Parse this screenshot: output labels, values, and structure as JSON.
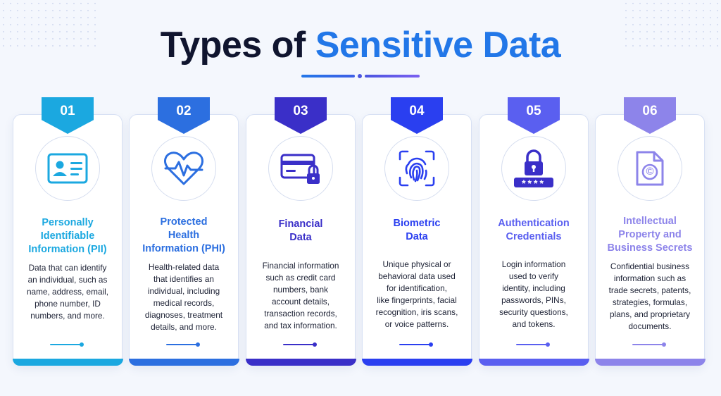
{
  "title": {
    "part1": "Types of ",
    "part2": "Sensitive Data"
  },
  "colors": {
    "title_dark": "#10152f",
    "title_accent": "#2277e8",
    "card_accents": [
      "#1ba8e0",
      "#2c6fe0",
      "#3a2fc8",
      "#2a3ff0",
      "#5a5ff0",
      "#8d84ea"
    ]
  },
  "cards": [
    {
      "number": "01",
      "icon": "id-card-icon",
      "title": [
        "Personally",
        "Identifiable",
        "Information (PII)"
      ],
      "description": [
        "Data that can identify",
        "an individual, such as",
        "name, address, email,",
        "phone number, ID",
        "numbers, and more."
      ]
    },
    {
      "number": "02",
      "icon": "heart-pulse-icon",
      "title": [
        "Protected",
        "Health",
        "Information (PHI)"
      ],
      "description": [
        "Health-related data",
        "that identifies an",
        "individual, including",
        "medical records,",
        "diagnoses, treatment",
        "details, and more."
      ]
    },
    {
      "number": "03",
      "icon": "credit-card-lock-icon",
      "title": [
        "Financial",
        "Data"
      ],
      "description": [
        "Financial information",
        "such as credit card",
        "numbers, bank",
        "account details,",
        "transaction records,",
        "and tax information."
      ]
    },
    {
      "number": "04",
      "icon": "fingerprint-icon",
      "title": [
        "Biometric",
        "Data"
      ],
      "description": [
        "Unique physical or",
        "behavioral data used",
        "for identification,",
        "like fingerprints, facial",
        "recognition, iris scans,",
        "or voice patterns."
      ]
    },
    {
      "number": "05",
      "icon": "padlock-password-icon",
      "title": [
        "Authentication",
        "Credentials"
      ],
      "description": [
        "Login information",
        "used to verify",
        "identity, including",
        "passwords, PINs,",
        "security questions,",
        "and tokens."
      ],
      "password_mask": "****"
    },
    {
      "number": "06",
      "icon": "copyright-document-icon",
      "title": [
        "Intellectual",
        "Property and",
        "Business Secrets"
      ],
      "description": [
        "Confidential business",
        "information such as",
        "trade secrets, patents,",
        "strategies, formulas,",
        "plans, and proprietary",
        "documents."
      ],
      "copyright_symbol": "©"
    }
  ]
}
